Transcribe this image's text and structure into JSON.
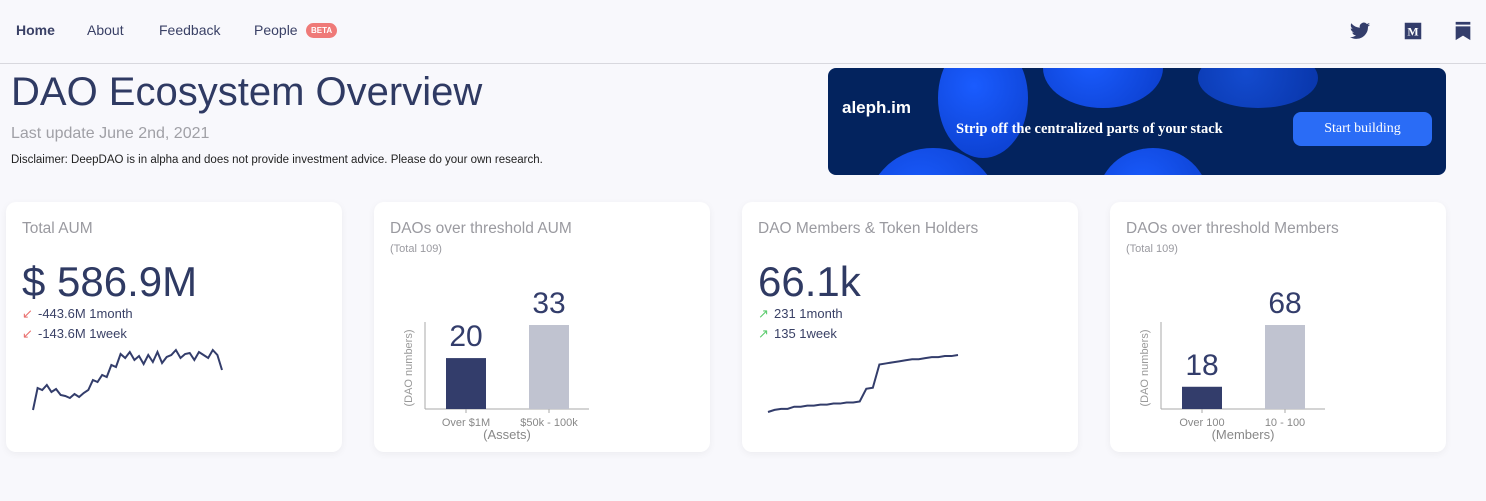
{
  "nav": {
    "items": [
      "Home",
      "About",
      "Feedback",
      "People"
    ],
    "beta_badge": "BETA",
    "icons": [
      "twitter-icon",
      "medium-icon",
      "bookmark-icon"
    ]
  },
  "header": {
    "title": "DAO Ecosystem Overview",
    "last_update": "Last update June 2nd, 2021",
    "disclaimer": "Disclaimer: DeepDAO is in alpha and does not provide investment advice. Please do your own research."
  },
  "ad": {
    "brand": "aleph.im",
    "tagline": "Strip off the centralized parts of your stack",
    "button": "Start building"
  },
  "colors": {
    "primary": "#333d6b",
    "secondary": "#c0c3d0",
    "down": "#e9706e",
    "up": "#5ccc6e"
  },
  "cards": [
    {
      "title": "Total AUM",
      "value": "$ 586.9M",
      "changes": [
        {
          "text": "-443.6M 1month",
          "direction": "down"
        },
        {
          "text": "-143.6M 1week",
          "direction": "down"
        }
      ],
      "sparkline": [
        0,
        22,
        20,
        25,
        18,
        21,
        15,
        14,
        12,
        16,
        13,
        17,
        20,
        30,
        28,
        35,
        33,
        45,
        43,
        56,
        52,
        58,
        50,
        54,
        46,
        55,
        48,
        58,
        47,
        53,
        55,
        60,
        52,
        56,
        57,
        50,
        58,
        55,
        52,
        60,
        55,
        40
      ]
    },
    {
      "title": "DAOs over threshold AUM",
      "subtitle": "(Total 109)",
      "chart_data": {
        "type": "bar",
        "categories": [
          "Over $1M",
          "$50k - 100k"
        ],
        "values": [
          20,
          33
        ],
        "xlabel": "(Assets)",
        "ylabel": "(DAO numbers)"
      }
    },
    {
      "title": "DAO Members & Token Holders",
      "value": "66.1k",
      "changes": [
        {
          "text": "231 1month",
          "direction": "up"
        },
        {
          "text": "135 1week",
          "direction": "up"
        }
      ],
      "sparkline": [
        0,
        2,
        3,
        3,
        5,
        5,
        6,
        6,
        7,
        7,
        8,
        8,
        9,
        9,
        10,
        22,
        23,
        45,
        46,
        47,
        48,
        49,
        50,
        50,
        51,
        52,
        52,
        53,
        53,
        54
      ]
    },
    {
      "title": "DAOs over threshold Members",
      "subtitle": "(Total 109)",
      "chart_data": {
        "type": "bar",
        "categories": [
          "Over 100",
          "10 - 100"
        ],
        "values": [
          18,
          68
        ],
        "xlabel": "(Members)",
        "ylabel": "(DAO numbers)"
      }
    }
  ]
}
